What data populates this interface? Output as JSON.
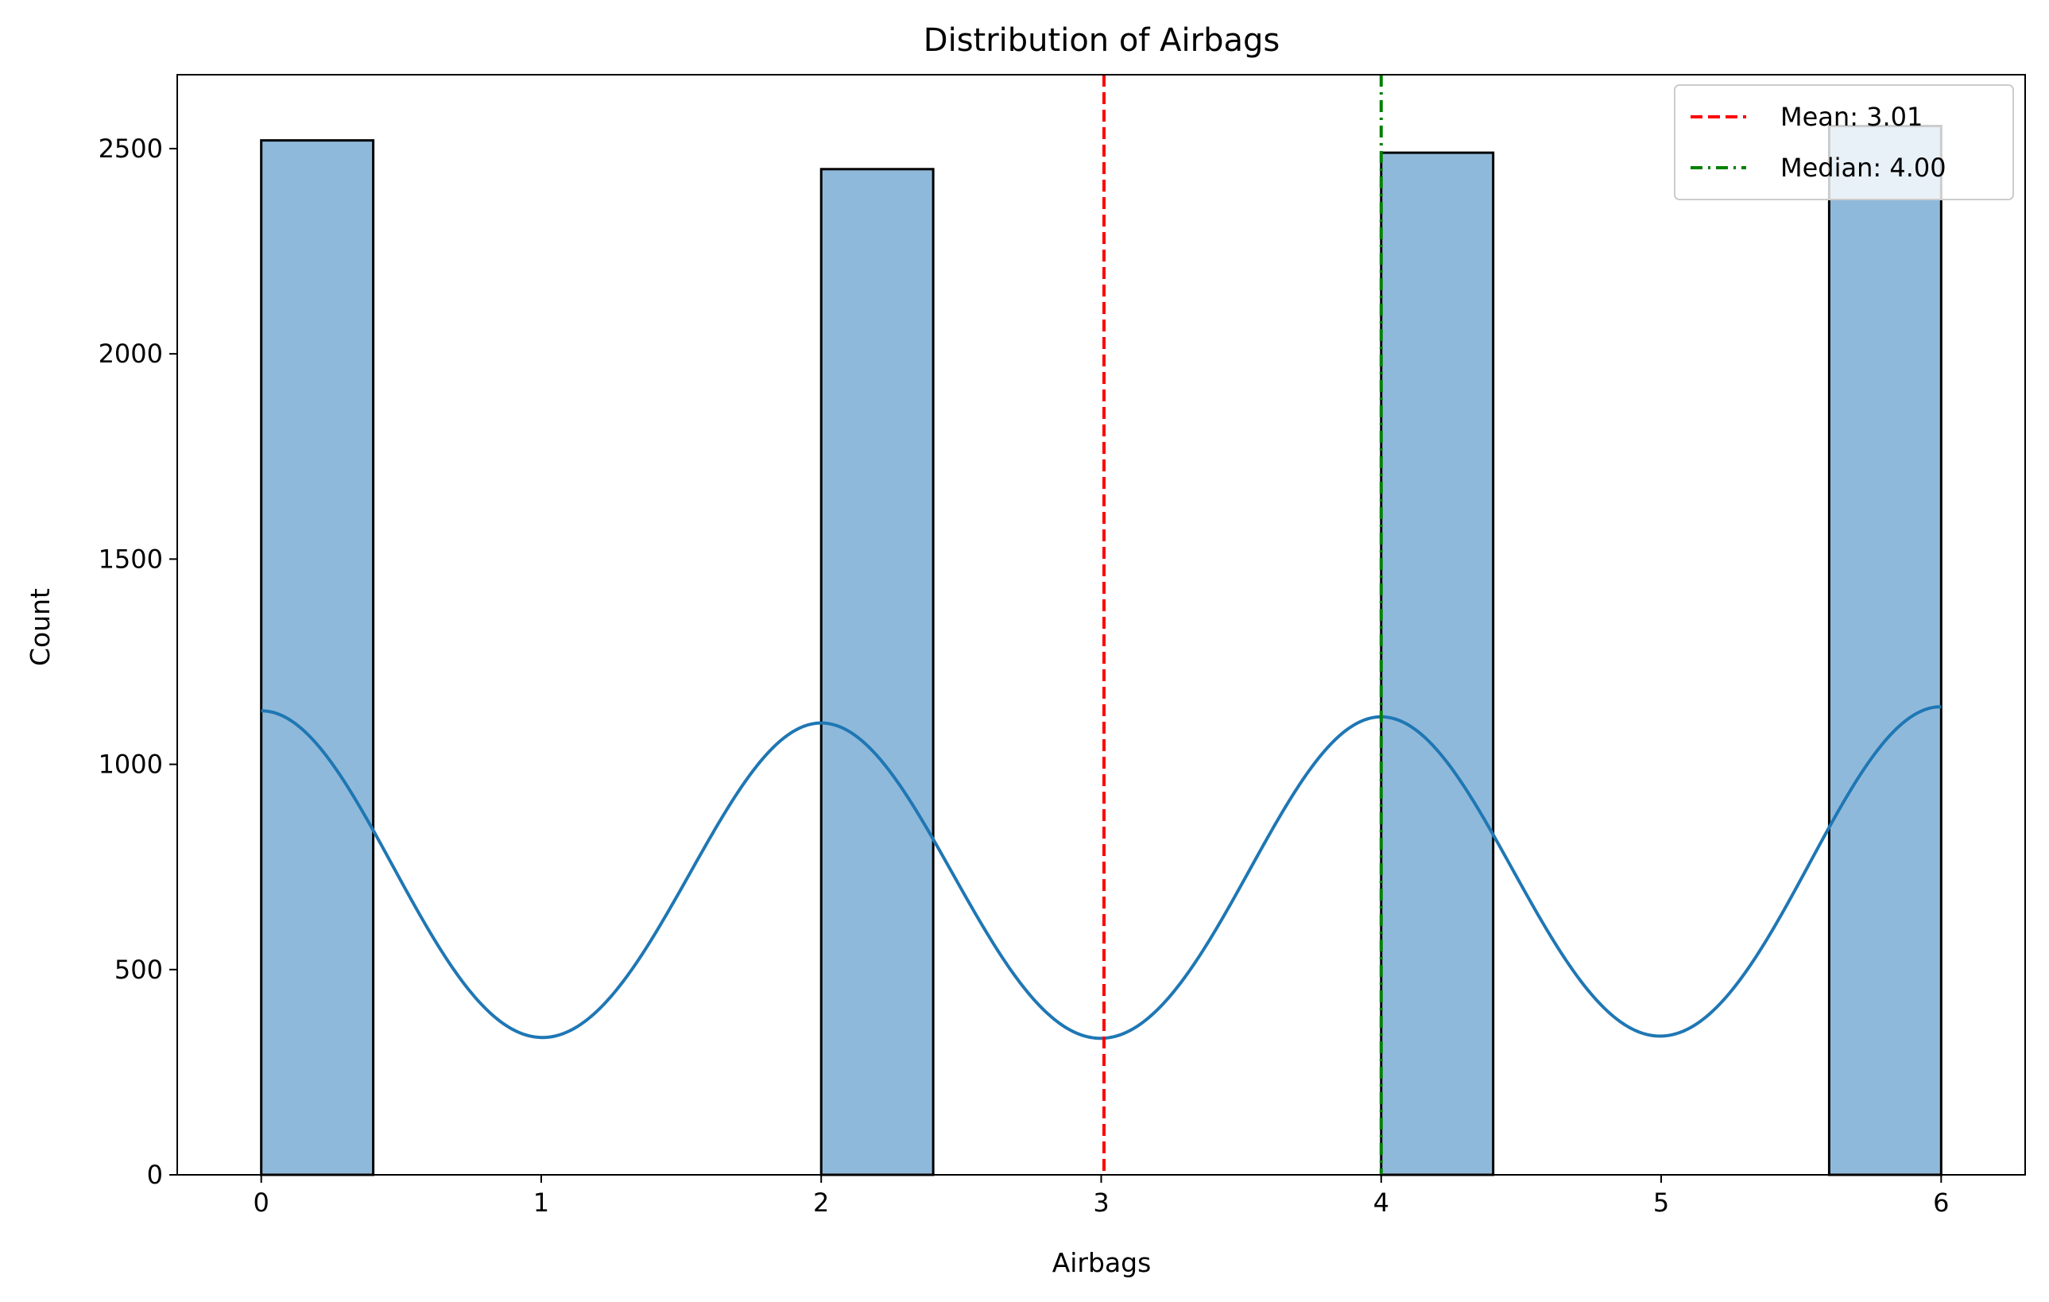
{
  "chart_data": {
    "type": "bar",
    "title": "Distribution of Airbags",
    "xlabel": "Airbags",
    "ylabel": "Count",
    "xlim": [
      -0.3,
      6.3
    ],
    "ylim": [
      0,
      2680
    ],
    "xticks": [
      0,
      1,
      2,
      3,
      4,
      5,
      6
    ],
    "yticks": [
      0,
      500,
      1000,
      1500,
      2000,
      2500
    ],
    "grid": false,
    "legend_position": "top-right",
    "histogram": {
      "bin_width": 0.4,
      "bins": [
        {
          "x0": 0.0,
          "x1": 0.4,
          "count": 2520
        },
        {
          "x0": 2.0,
          "x1": 2.4,
          "count": 2450
        },
        {
          "x0": 4.0,
          "x1": 4.4,
          "count": 2490
        },
        {
          "x0": 5.6,
          "x1": 6.0,
          "count": 2555
        }
      ],
      "fill": "#8fb9da",
      "edge": "#000000"
    },
    "kde": {
      "color": "#1f77b4",
      "x_range": [
        0,
        6
      ],
      "peaks": [
        {
          "x": 0,
          "y": 1130
        },
        {
          "x": 2,
          "y": 1100
        },
        {
          "x": 4,
          "y": 1115
        },
        {
          "x": 6,
          "y": 1140
        }
      ],
      "baseline": 45,
      "peak_sigma": 0.5
    },
    "reference_lines": [
      {
        "name": "Mean",
        "label": "Mean: 3.01",
        "x": 3.01,
        "color": "#ff0000",
        "style": "dashed"
      },
      {
        "name": "Median",
        "label": "Median: 4.00",
        "x": 4.0,
        "color": "#008000",
        "style": "dashdot"
      }
    ]
  }
}
